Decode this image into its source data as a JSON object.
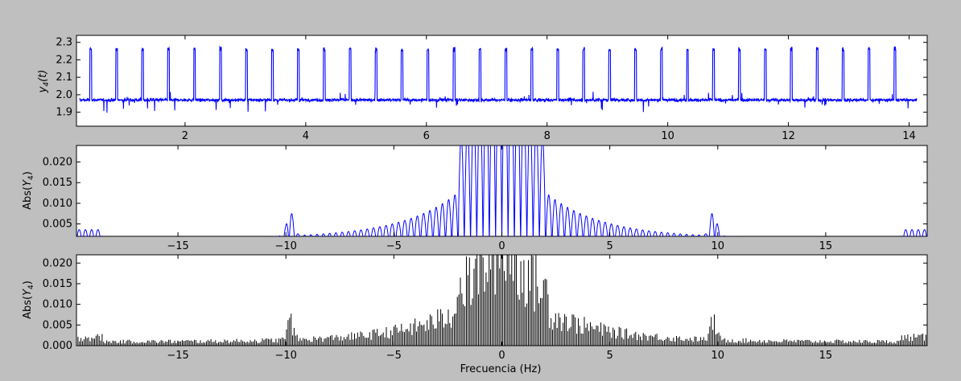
{
  "chart_data": [
    {
      "type": "line",
      "ylabel": "y_4(t)",
      "xlabel": "",
      "xlim": [
        0.2,
        14.3
      ],
      "ylim": [
        1.82,
        2.34
      ],
      "xticks": [
        "2",
        "4",
        "6",
        "8",
        "10",
        "12",
        "14"
      ],
      "yticks": [
        "1.9",
        "2.0",
        "2.1",
        "2.2",
        "2.3"
      ],
      "color": "#0000ff",
      "series": [
        {
          "baseline": 1.97,
          "pulse_height": 2.26,
          "pulse_period_s": 0.43,
          "t_start": 0.25,
          "t_end": 14.13
        }
      ]
    },
    {
      "type": "line",
      "ylabel": "Abs(Y_4)",
      "xlabel": "",
      "xlim": [
        -19.7,
        19.7
      ],
      "ylim": [
        0.002,
        0.024
      ],
      "xticks": [
        "−15",
        "−10",
        "−5",
        "0",
        "5",
        "10",
        "15"
      ],
      "yticks": [
        "0.005",
        "0.010",
        "0.015",
        "0.020"
      ],
      "color": "#0000ff",
      "series": [
        {
          "lobe_spacing_hz": 0.29,
          "peak_frequencies_hz": [
            -9.8,
            9.8
          ],
          "peak_value": 0.008,
          "central_value": 0.024
        }
      ]
    },
    {
      "type": "line",
      "ylabel": "Abs(Y_4)",
      "xlabel": "Frecuencia (Hz)",
      "xlim": [
        -19.7,
        19.7
      ],
      "ylim": [
        0.0,
        0.022
      ],
      "xticks": [
        "−15",
        "−10",
        "−5",
        "0",
        "5",
        "10",
        "15"
      ],
      "yticks": [
        "0.000",
        "0.005",
        "0.010",
        "0.015",
        "0.020"
      ],
      "color": "#000000",
      "series": [
        {
          "line_spacing_hz": 0.07,
          "peak_frequencies_hz": [
            -9.8,
            9.8
          ],
          "peak_value": 0.008,
          "central_value": 0.022
        }
      ]
    }
  ]
}
